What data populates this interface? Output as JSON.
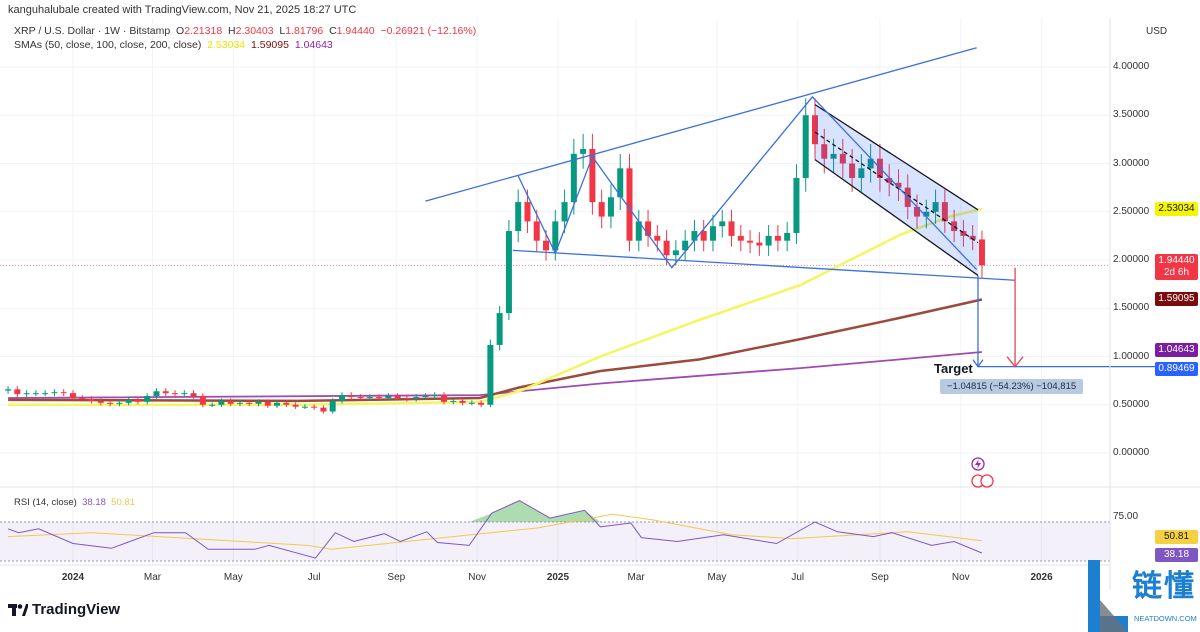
{
  "header": {
    "attribution": "kanguhalubale created with TradingView.com, Nov 21, 2025 18:27 UTC",
    "symbol": "XRP / U.S. Dollar · 1W · Bitstamp",
    "o_label": "O",
    "o": "2.21318",
    "h_label": "H",
    "h": "2.30403",
    "l_label": "L",
    "l": "1.81796",
    "c_label": "C",
    "c": "1.94440",
    "change": "−0.26921 (−12.16%)",
    "sma_label": "SMAs (50, close, 100, close, 200, close)",
    "sma50": "2.53034",
    "sma100": "1.59095",
    "sma200": "1.04643"
  },
  "axis": {
    "currency": "USD",
    "price_ticks": [
      "4.00000",
      "3.50000",
      "3.00000",
      "2.50000",
      "2.00000",
      "1.50000",
      "1.00000",
      "0.50000",
      "0.00000"
    ],
    "time_ticks": [
      {
        "label": "2024",
        "bold": true,
        "date": "2024-01-01"
      },
      {
        "label": "Mar",
        "bold": false,
        "date": "2024-03-01"
      },
      {
        "label": "May",
        "bold": false,
        "date": "2024-05-01"
      },
      {
        "label": "Jul",
        "bold": false,
        "date": "2024-07-01"
      },
      {
        "label": "Sep",
        "bold": false,
        "date": "2024-09-01"
      },
      {
        "label": "Nov",
        "bold": false,
        "date": "2024-11-01"
      },
      {
        "label": "2025",
        "bold": true,
        "date": "2025-01-01"
      },
      {
        "label": "Mar",
        "bold": false,
        "date": "2025-03-01"
      },
      {
        "label": "May",
        "bold": false,
        "date": "2025-05-01"
      },
      {
        "label": "Jul",
        "bold": false,
        "date": "2025-07-01"
      },
      {
        "label": "Sep",
        "bold": false,
        "date": "2025-09-01"
      },
      {
        "label": "Nov",
        "bold": false,
        "date": "2025-11-01"
      },
      {
        "label": "2026",
        "bold": true,
        "date": "2026-01-01"
      }
    ]
  },
  "price_tags": {
    "sma50": {
      "value": "2.53034",
      "color": "#f5f500",
      "text_color": "#131722"
    },
    "last": {
      "value": "1.94440",
      "countdown": "2d 6h",
      "color": "#f23645"
    },
    "sma100": {
      "value": "1.59095",
      "color": "#7a0c0c"
    },
    "sma200": {
      "value": "1.04643",
      "color": "#7b1fa2"
    },
    "target": {
      "value": "0.89469",
      "color": "#2962ff"
    }
  },
  "annotations": {
    "target_label": "Target",
    "measure": "−1.04815 (−54.23%) −104,815"
  },
  "rsi": {
    "legend": "RSI (14, close)",
    "value": "38.18",
    "ma_value": "50.81",
    "level_label": "75.00",
    "bands": [
      30,
      70
    ],
    "color": "#7e57c2",
    "ma_color": "#f2c94c"
  },
  "footer": {
    "brand": "TradingView"
  },
  "watermark": {
    "text": "链懂",
    "sub": "NEATDOWN.COM"
  },
  "chart_data": {
    "type": "candlestick",
    "interval": "1W",
    "first_week": "2023-11-13",
    "ylim": [
      -0.3,
      4.3
    ],
    "grid": true,
    "colors": {
      "up": "#089981",
      "down": "#f23645",
      "sma50": "#f5f560",
      "sma100": "#9c4a3c",
      "sma200": "#a04bb0",
      "drawing": "#3b6fe0",
      "arrow_red": "#e0445a"
    },
    "closes": [
      0.66,
      0.61,
      0.62,
      0.62,
      0.62,
      0.63,
      0.62,
      0.57,
      0.56,
      0.54,
      0.52,
      0.51,
      0.52,
      0.55,
      0.53,
      0.59,
      0.64,
      0.62,
      0.61,
      0.62,
      0.59,
      0.5,
      0.5,
      0.54,
      0.51,
      0.52,
      0.51,
      0.53,
      0.49,
      0.52,
      0.5,
      0.48,
      0.48,
      0.47,
      0.43,
      0.54,
      0.6,
      0.58,
      0.57,
      0.58,
      0.57,
      0.59,
      0.57,
      0.56,
      0.58,
      0.59,
      0.6,
      0.53,
      0.54,
      0.52,
      0.52,
      0.5,
      1.12,
      1.45,
      2.3,
      2.6,
      2.4,
      2.2,
      2.1,
      2.4,
      2.6,
      3.1,
      3.15,
      2.6,
      2.45,
      2.65,
      2.95,
      2.2,
      2.4,
      2.25,
      2.2,
      2.05,
      2.1,
      2.2,
      2.3,
      2.2,
      2.35,
      2.4,
      2.25,
      2.2,
      2.18,
      2.15,
      2.25,
      2.2,
      2.28,
      2.85,
      3.5,
      3.2,
      3.05,
      3.1,
      3.0,
      2.85,
      2.95,
      3.05,
      2.85,
      2.8,
      2.75,
      2.55,
      2.45,
      2.5,
      2.6,
      2.4,
      2.3,
      2.25,
      2.21318,
      1.9444
    ],
    "last_candle": {
      "open": 2.21318,
      "high": 2.30403,
      "low": 1.81796,
      "close": 1.9444
    },
    "sma50": [
      [
        "2023-11-13",
        0.5
      ],
      [
        "2024-06-20",
        0.5
      ],
      [
        "2024-11-03",
        0.53
      ],
      [
        "2024-12-03",
        0.64
      ],
      [
        "2025-02-02",
        1.0
      ],
      [
        "2025-04-18",
        1.38
      ],
      [
        "2025-07-03",
        1.74
      ],
      [
        "2025-09-16",
        2.26
      ],
      [
        "2025-10-24",
        2.45
      ],
      [
        "2025-11-17",
        2.53034
      ]
    ],
    "sma100": [
      [
        "2023-11-13",
        0.55
      ],
      [
        "2024-06-20",
        0.54
      ],
      [
        "2024-11-03",
        0.57
      ],
      [
        "2024-12-03",
        0.68
      ],
      [
        "2025-02-02",
        0.85
      ],
      [
        "2025-04-18",
        0.97
      ],
      [
        "2025-07-03",
        1.18
      ],
      [
        "2025-09-16",
        1.4
      ],
      [
        "2025-11-17",
        1.59095
      ]
    ],
    "sma200": [
      [
        "2023-11-13",
        0.57
      ],
      [
        "2024-11-03",
        0.6
      ],
      [
        "2025-02-02",
        0.72
      ],
      [
        "2025-04-18",
        0.8
      ],
      [
        "2025-07-03",
        0.88
      ],
      [
        "2025-09-16",
        0.97
      ],
      [
        "2025-11-17",
        1.04643
      ]
    ],
    "rsi": [
      [
        "2023-11-13",
        63
      ],
      [
        "2023-11-21",
        59
      ],
      [
        "2023-12-06",
        63
      ],
      [
        "2024-01-01",
        48
      ],
      [
        "2024-01-30",
        43
      ],
      [
        "2024-03-02",
        59
      ],
      [
        "2024-03-26",
        59
      ],
      [
        "2024-04-12",
        42
      ],
      [
        "2024-05-17",
        42
      ],
      [
        "2024-05-28",
        46
      ],
      [
        "2024-07-02",
        33
      ],
      [
        "2024-07-17",
        59
      ],
      [
        "2024-07-31",
        50
      ],
      [
        "2024-08-23",
        58
      ],
      [
        "2024-09-04",
        50
      ],
      [
        "2024-09-24",
        60
      ],
      [
        "2024-10-02",
        49
      ],
      [
        "2024-10-26",
        46
      ],
      [
        "2024-11-12",
        79
      ],
      [
        "2024-12-03",
        92
      ],
      [
        "2024-12-26",
        74
      ],
      [
        "2025-01-21",
        82
      ],
      [
        "2025-02-02",
        65
      ],
      [
        "2025-02-25",
        69
      ],
      [
        "2025-03-05",
        54
      ],
      [
        "2025-04-01",
        50
      ],
      [
        "2025-05-06",
        57
      ],
      [
        "2025-06-15",
        48
      ],
      [
        "2025-07-14",
        70
      ],
      [
        "2025-07-31",
        60
      ],
      [
        "2025-08-27",
        55
      ],
      [
        "2025-09-10",
        59
      ],
      [
        "2025-10-10",
        46
      ],
      [
        "2025-10-27",
        50
      ],
      [
        "2025-11-17",
        38.18
      ]
    ],
    "rsi_ma": [
      [
        "2023-11-13",
        55
      ],
      [
        "2024-01-15",
        59
      ],
      [
        "2024-03-31",
        53
      ],
      [
        "2024-06-26",
        46
      ],
      [
        "2024-07-14",
        42
      ],
      [
        "2024-10-21",
        56
      ],
      [
        "2024-12-17",
        64
      ],
      [
        "2025-02-11",
        78
      ],
      [
        "2025-03-14",
        72
      ],
      [
        "2025-05-12",
        57
      ],
      [
        "2025-06-27",
        53
      ],
      [
        "2025-09-22",
        60
      ],
      [
        "2025-11-17",
        50.81
      ]
    ],
    "drawings": {
      "upper_trendline": [
        [
          "2024-09-23",
          2.61
        ],
        [
          "2025-11-13",
          4.2
        ]
      ],
      "neckline": [
        [
          "2024-11-28",
          2.1
        ],
        [
          "2025-12-12",
          1.79
        ]
      ],
      "zigzag": [
        [
          "2024-12-02",
          2.87
        ],
        [
          "2024-12-30",
          2.07
        ],
        [
          "2025-01-27",
          3.07
        ],
        [
          "2025-03-28",
          1.92
        ],
        [
          "2025-07-12",
          3.69
        ],
        [
          "2025-11-13",
          1.9
        ]
      ],
      "channel_upper": [
        [
          "2025-07-14",
          3.61
        ],
        [
          "2025-11-14",
          2.52
        ]
      ],
      "channel_lower": [
        [
          "2025-07-14",
          3.04
        ],
        [
          "2025-11-14",
          1.84
        ]
      ],
      "measure_arrow": [
        [
          "2025-11-14",
          1.84
        ],
        [
          "2025-11-14",
          0.89469
        ]
      ],
      "target_line": [
        [
          "2025-11-14",
          0.89469
        ]
      ],
      "red_arrow": [
        [
          "2025-12-12",
          1.92
        ],
        [
          "2025-12-12",
          0.89469
        ]
      ]
    }
  }
}
